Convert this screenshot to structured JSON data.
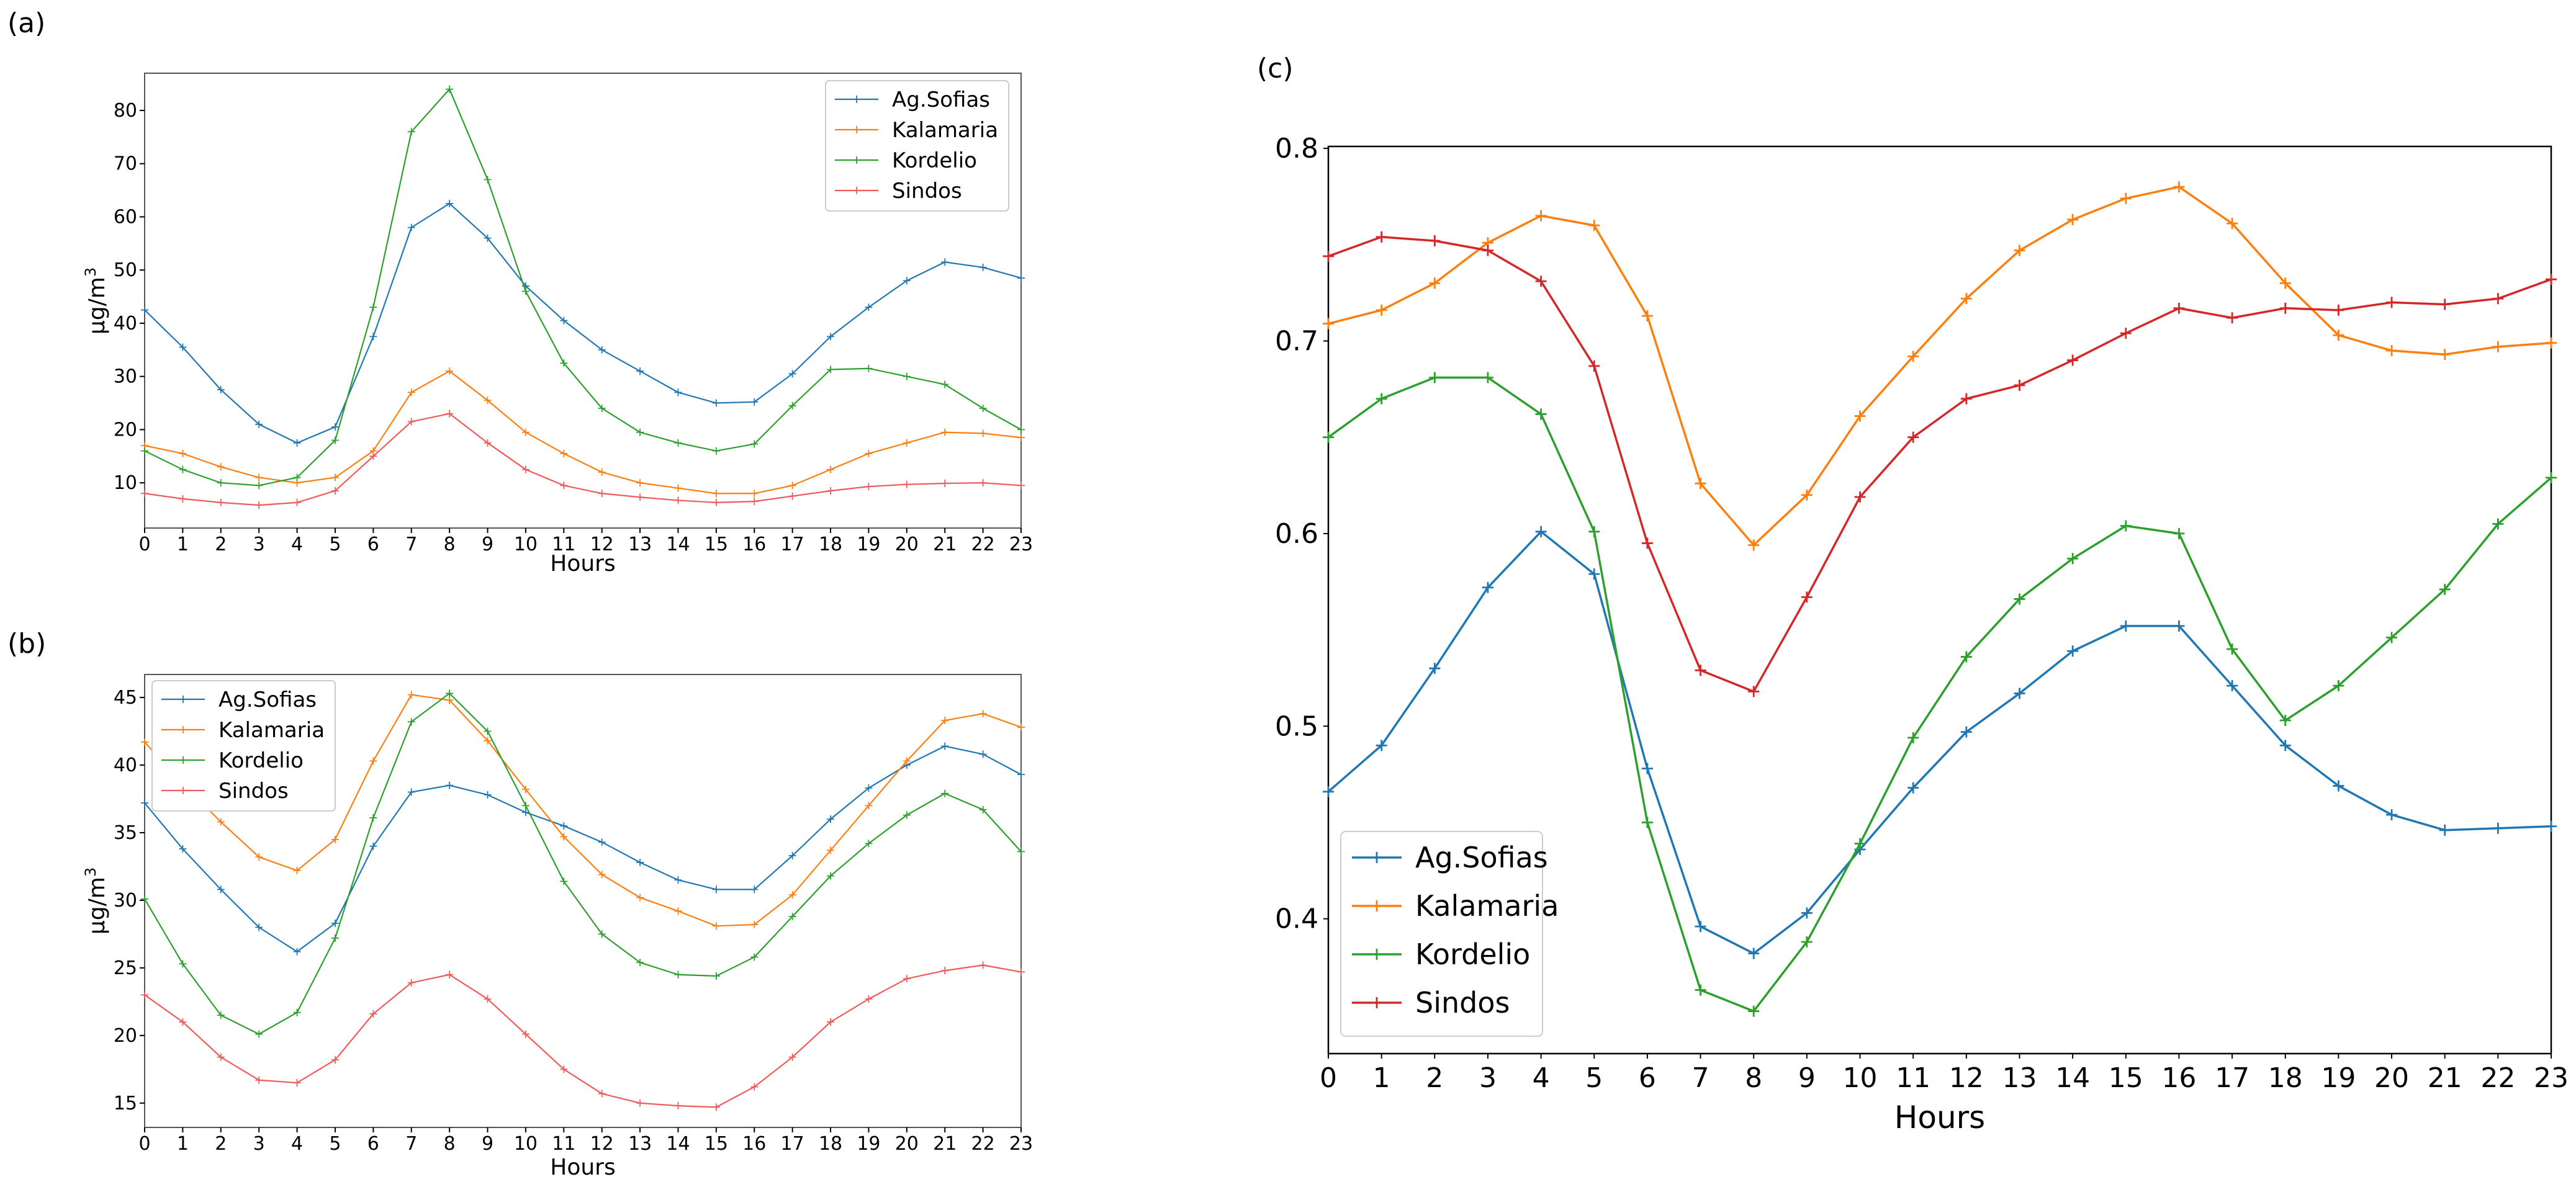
{
  "series_colors": {
    "Ag.Sofias": "#1f77b4",
    "Kalamaria": "#ff7f0e",
    "Kordelio": "#2ca02c",
    "Sindos": "#d62728",
    "Sindos_light": "#f05a5a"
  },
  "chart_data": [
    {
      "panel": "(a)",
      "type": "line",
      "title": "",
      "xlabel": "Hours",
      "ylabel": "μg/m³",
      "ylabel_base": "μg/m",
      "ylabel_sup": "3",
      "legend_position": "top-right",
      "x": [
        0,
        1,
        2,
        3,
        4,
        5,
        6,
        7,
        8,
        9,
        10,
        11,
        12,
        13,
        14,
        15,
        16,
        17,
        18,
        19,
        20,
        21,
        22,
        23
      ],
      "xlim": [
        0,
        23
      ],
      "ylim": [
        1.5,
        87
      ],
      "yticks": [
        10,
        20,
        30,
        40,
        50,
        60,
        70,
        80
      ],
      "series": [
        {
          "name": "Ag.Sofias",
          "values": [
            42.5,
            35.5,
            27.5,
            21,
            17.5,
            20.5,
            37.5,
            58,
            62.5,
            56,
            47,
            40.5,
            35,
            31,
            27,
            25,
            25.2,
            30.5,
            37.5,
            43,
            48,
            51.5,
            50.5,
            48.5
          ]
        },
        {
          "name": "Kalamaria",
          "values": [
            17,
            15.5,
            13,
            11,
            10,
            11,
            16,
            27,
            31,
            25.5,
            19.5,
            15.5,
            12,
            10,
            9,
            8,
            8,
            9.5,
            12.5,
            15.5,
            17.5,
            19.5,
            19.3,
            18.5
          ]
        },
        {
          "name": "Kordelio",
          "values": [
            16,
            12.5,
            10,
            9.5,
            11,
            18,
            43,
            76,
            84,
            67,
            46,
            32.5,
            24,
            19.5,
            17.5,
            16,
            17.3,
            24.5,
            31.3,
            31.5,
            30,
            28.5,
            24,
            20
          ]
        },
        {
          "name": "Sindos",
          "values": [
            8,
            7,
            6.3,
            5.8,
            6.3,
            8.5,
            15,
            21.5,
            23,
            17.5,
            12.5,
            9.5,
            8,
            7.3,
            6.7,
            6.3,
            6.5,
            7.5,
            8.5,
            9.3,
            9.7,
            9.9,
            10,
            9.5
          ]
        }
      ]
    },
    {
      "panel": "(b)",
      "type": "line",
      "title": "",
      "xlabel": "Hours",
      "ylabel": "μg/m³",
      "ylabel_base": "μg/m",
      "ylabel_sup": "3",
      "legend_position": "top-left",
      "x": [
        0,
        1,
        2,
        3,
        4,
        5,
        6,
        7,
        8,
        9,
        10,
        11,
        12,
        13,
        14,
        15,
        16,
        17,
        18,
        19,
        20,
        21,
        22,
        23
      ],
      "xlim": [
        0,
        23
      ],
      "ylim": [
        13.2,
        46.7
      ],
      "yticks": [
        15,
        20,
        25,
        30,
        35,
        40,
        45
      ],
      "series": [
        {
          "name": "Ag.Sofias",
          "values": [
            37.2,
            33.8,
            30.8,
            28,
            26.2,
            28.3,
            34,
            38,
            38.5,
            37.8,
            36.5,
            35.5,
            34.3,
            32.8,
            31.5,
            30.8,
            30.8,
            33.3,
            36,
            38.3,
            40,
            41.4,
            40.8,
            39.3
          ]
        },
        {
          "name": "Kalamaria",
          "values": [
            41.7,
            38.6,
            35.8,
            33.2,
            32.2,
            34.5,
            40.3,
            45.2,
            44.8,
            41.8,
            38.2,
            34.7,
            31.9,
            30.2,
            29.2,
            28.1,
            28.2,
            30.4,
            33.7,
            37,
            40.3,
            43.3,
            43.8,
            42.8
          ]
        },
        {
          "name": "Kordelio",
          "values": [
            30.1,
            25.3,
            21.5,
            20.1,
            21.7,
            27.2,
            36.1,
            43.2,
            45.3,
            42.5,
            37,
            31.4,
            27.5,
            25.4,
            24.5,
            24.4,
            25.8,
            28.8,
            31.8,
            34.2,
            36.3,
            37.9,
            36.7,
            33.6
          ]
        },
        {
          "name": "Sindos",
          "values": [
            23,
            21,
            18.4,
            16.7,
            16.5,
            18.2,
            21.6,
            23.9,
            24.5,
            22.7,
            20.1,
            17.5,
            15.7,
            15,
            14.8,
            14.7,
            16.2,
            18.4,
            21,
            22.7,
            24.2,
            24.8,
            25.2,
            24.7
          ]
        }
      ]
    },
    {
      "panel": "(c)",
      "type": "line",
      "title": "",
      "xlabel": "Hours",
      "ylabel": "",
      "legend_position": "bottom-left",
      "x": [
        0,
        1,
        2,
        3,
        4,
        5,
        6,
        7,
        8,
        9,
        10,
        11,
        12,
        13,
        14,
        15,
        16,
        17,
        18,
        19,
        20,
        21,
        22,
        23
      ],
      "xlim": [
        0,
        23
      ],
      "ylim": [
        0.33,
        0.801
      ],
      "yticks": [
        0.4,
        0.5,
        0.6,
        0.7,
        0.8
      ],
      "ytick_labels": [
        "0.4",
        "0.5",
        "0.6",
        "0.7",
        "0.8"
      ],
      "series": [
        {
          "name": "Ag.Sofias",
          "values": [
            0.466,
            0.49,
            0.53,
            0.572,
            0.601,
            0.579,
            0.478,
            0.396,
            0.382,
            0.403,
            0.436,
            0.468,
            0.497,
            0.517,
            0.539,
            0.552,
            0.552,
            0.521,
            0.49,
            0.469,
            0.454,
            0.446,
            0.447,
            0.448
          ]
        },
        {
          "name": "Kalamaria",
          "values": [
            0.709,
            0.716,
            0.73,
            0.751,
            0.765,
            0.76,
            0.713,
            0.626,
            0.594,
            0.62,
            0.661,
            0.692,
            0.722,
            0.747,
            0.763,
            0.774,
            0.78,
            0.761,
            0.73,
            0.703,
            0.695,
            0.693,
            0.697,
            0.699
          ]
        },
        {
          "name": "Kordelio",
          "values": [
            0.65,
            0.67,
            0.681,
            0.681,
            0.662,
            0.601,
            0.45,
            0.363,
            0.352,
            0.388,
            0.439,
            0.494,
            0.536,
            0.566,
            0.587,
            0.604,
            0.6,
            0.54,
            0.503,
            0.521,
            0.546,
            0.571,
            0.605,
            0.629
          ]
        },
        {
          "name": "Sindos",
          "values": [
            0.744,
            0.754,
            0.752,
            0.747,
            0.731,
            0.687,
            0.595,
            0.529,
            0.518,
            0.567,
            0.619,
            0.65,
            0.67,
            0.677,
            0.69,
            0.704,
            0.717,
            0.712,
            0.717,
            0.716,
            0.72,
            0.719,
            0.722,
            0.732
          ]
        }
      ]
    }
  ]
}
